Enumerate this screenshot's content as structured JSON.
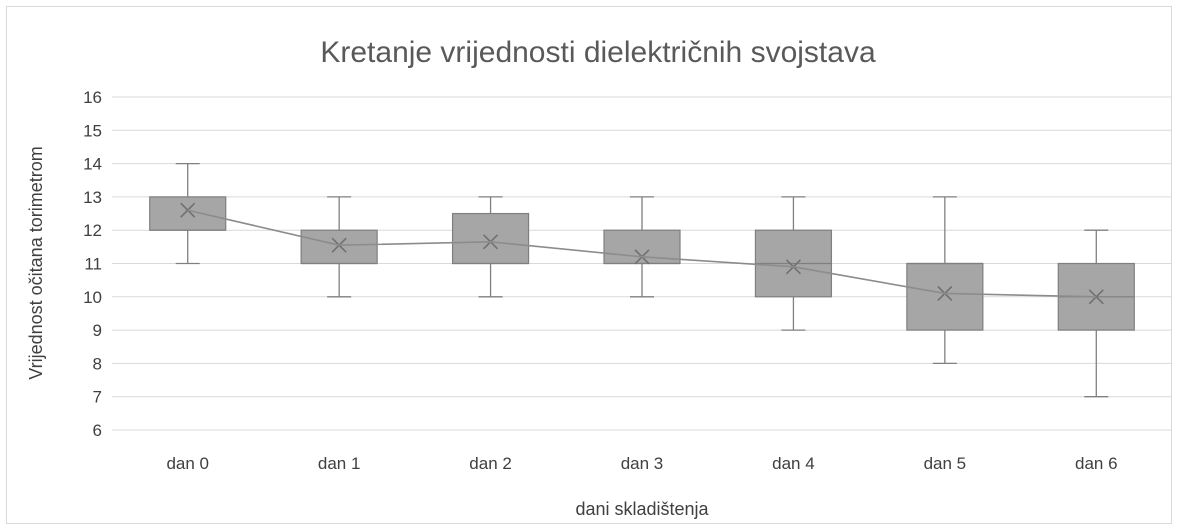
{
  "chart_data": {
    "type": "box",
    "title": "Kretanje vrijednosti dielektričnih svojstava",
    "xlabel": "dani skladištenja",
    "ylabel": "Vrijednost očitana torimetrom",
    "ylim": [
      6,
      16
    ],
    "yticks": [
      6,
      7,
      8,
      9,
      10,
      11,
      12,
      13,
      14,
      15,
      16
    ],
    "grid": true,
    "categories": [
      "dan 0",
      "dan 1",
      "dan 2",
      "dan 3",
      "dan 4",
      "dan 5",
      "dan 6"
    ],
    "boxes": [
      {
        "min": 11,
        "q1": 12,
        "median": 12,
        "q3": 13,
        "max": 14,
        "mean": 12.6
      },
      {
        "min": 10,
        "q1": 11,
        "median": 11,
        "q3": 12,
        "max": 13,
        "mean": 11.55
      },
      {
        "min": 10,
        "q1": 11,
        "median": 11,
        "q3": 12.5,
        "max": 13,
        "mean": 11.65
      },
      {
        "min": 10,
        "q1": 11,
        "median": 11,
        "q3": 12,
        "max": 13,
        "mean": 11.2
      },
      {
        "min": 9,
        "q1": 10,
        "median": 11,
        "q3": 12,
        "max": 13,
        "mean": 10.9
      },
      {
        "min": 8,
        "q1": 9,
        "median": 11,
        "q3": 11,
        "max": 13,
        "mean": 10.1
      },
      {
        "min": 7,
        "q1": 9,
        "median": 10,
        "q3": 11,
        "max": 12,
        "mean": 10.0
      }
    ],
    "mean_line": true,
    "colors": {
      "box_fill": "#a6a6a6",
      "box_stroke": "#7f7f7f",
      "whisker": "#808080",
      "grid": "#d9d9d9",
      "mean_line": "#8c8c8c"
    }
  }
}
